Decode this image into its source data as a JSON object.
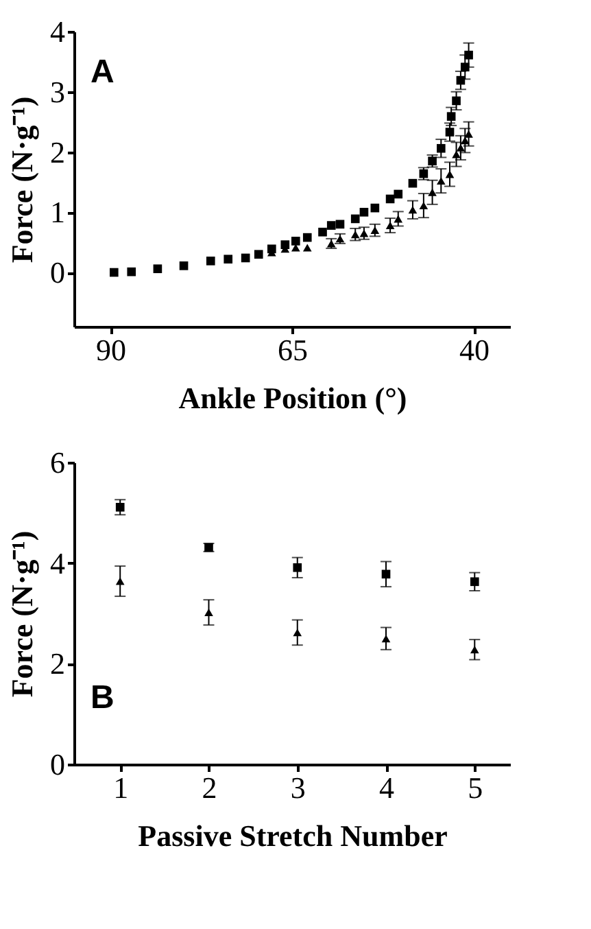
{
  "chart_data": [
    {
      "type": "scatter",
      "annotations": [
        "A"
      ],
      "xlabel": "Ankle Position (°)",
      "ylabel": "Force (N·g⁻¹)",
      "x": [
        89.5,
        87.1,
        83.5,
        79.9,
        76.2,
        73.8,
        71.4,
        69.6,
        67.8,
        65.96,
        64.5,
        62.9,
        60.8,
        59.6,
        58.4,
        56.3,
        55.1,
        53.6,
        51.5,
        50.4,
        48.4,
        46.9,
        45.7,
        44.5,
        43.3,
        43.1,
        42.4,
        41.8,
        41.2,
        40.7
      ],
      "series": [
        {
          "color": "#000000",
          "marker": "square",
          "values": [
            0,
            0.01,
            0.06,
            0.11,
            0.19,
            0.22,
            0.24,
            0.3,
            0.39,
            0.46,
            0.52,
            0.58,
            0.67,
            0.78,
            0.8,
            0.89,
            1.0,
            1.07,
            1.22,
            1.3,
            1.48,
            1.64,
            1.85,
            2.06,
            2.33,
            2.59,
            2.85,
            3.19,
            3.41,
            3.61
          ],
          "errors": [
            null,
            null,
            null,
            null,
            null,
            null,
            null,
            null,
            null,
            null,
            null,
            null,
            null,
            null,
            null,
            null,
            null,
            null,
            null,
            null,
            null,
            0.1,
            0.1,
            0.15,
            0.15,
            0.15,
            0.15,
            0.15,
            0.2,
            0.2
          ]
        },
        {
          "color": "#000000",
          "marker": "triangle",
          "values": [
            null,
            null,
            null,
            null,
            null,
            null,
            null,
            null,
            0.33,
            0.39,
            0.41,
            0.41,
            null,
            0.48,
            0.56,
            0.63,
            0.65,
            0.7,
            0.78,
            0.89,
            1.04,
            1.11,
            1.33,
            1.52,
            1.63,
            null,
            1.96,
            2.07,
            2.19,
            2.3
          ],
          "errors": [
            null,
            null,
            null,
            null,
            null,
            null,
            null,
            null,
            null,
            null,
            null,
            null,
            null,
            0.08,
            0.08,
            0.1,
            0.1,
            0.1,
            0.12,
            0.12,
            0.15,
            0.2,
            0.2,
            0.2,
            0.2,
            null,
            0.2,
            0.2,
            0.2,
            0.2
          ]
        }
      ],
      "xlim": [
        95,
        35
      ],
      "xticks": [
        90,
        65,
        40
      ],
      "ylim": [
        -0.9,
        4
      ],
      "yticks": [
        0,
        1,
        2,
        3,
        4
      ],
      "grid": false,
      "legend": false
    },
    {
      "type": "scatter",
      "annotations": [
        "B"
      ],
      "xlabel": "Passive Stretch Number",
      "ylabel": "Force (N·g⁻¹)",
      "x": [
        1,
        2,
        3,
        4,
        5
      ],
      "series": [
        {
          "color": "#000000",
          "marker": "square",
          "values": [
            5.11,
            4.31,
            3.91,
            3.78,
            3.63
          ],
          "errors": [
            0.15,
            0.08,
            0.2,
            0.25,
            0.18
          ]
        },
        {
          "color": "#000000",
          "marker": "triangle",
          "values": [
            3.64,
            3.02,
            2.62,
            2.5,
            2.28
          ],
          "errors": [
            0.3,
            0.25,
            0.25,
            0.22,
            0.2
          ]
        }
      ],
      "xlim": [
        0.48,
        5.4
      ],
      "xticks": [
        1,
        2,
        3,
        4,
        5
      ],
      "ylim": [
        0,
        6
      ],
      "yticks": [
        0,
        2,
        4,
        6
      ],
      "grid": false,
      "legend": false
    }
  ]
}
